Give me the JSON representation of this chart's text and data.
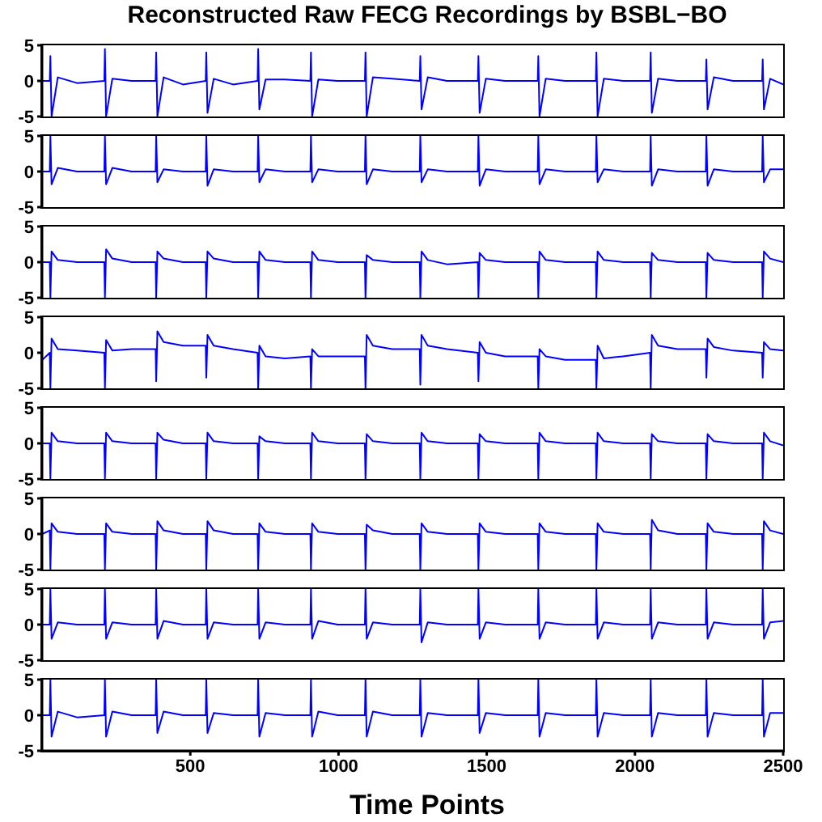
{
  "chart_data": [
    {
      "type": "line",
      "title": "Reconstructed Raw FECG Recordings by BSBL−BO",
      "x": [
        1,
        26,
        28,
        32,
        53,
        118,
        210,
        212,
        216,
        237,
        302,
        383,
        385,
        389,
        410,
        475,
        552,
        554,
        558,
        579,
        644,
        727,
        729,
        733,
        754,
        819,
        905,
        907,
        911,
        932,
        997,
        1089,
        1091,
        1095,
        1116,
        1181,
        1274,
        1276,
        1280,
        1301,
        1366,
        1470,
        1472,
        1476,
        1497,
        1562,
        1672,
        1674,
        1678,
        1699,
        1764,
        1868,
        1870,
        1874,
        1895,
        1960,
        2051,
        2053,
        2057,
        2078,
        2143,
        2239,
        2241,
        2245,
        2266,
        2331,
        2429,
        2431,
        2435,
        2456,
        2500
      ],
      "xlim": [
        0,
        2500
      ],
      "ylim": [
        -5,
        5
      ],
      "yticks": [
        -5,
        0,
        5
      ],
      "tick_labels": "y",
      "marker": "none",
      "line_style": "solid",
      "series": [
        {
          "color": "#0000ff",
          "values": [
            0,
            0,
            3.5,
            -5,
            0.5,
            -0.3,
            0,
            4.5,
            -5,
            0.3,
            0,
            0,
            4,
            -5,
            0.5,
            -0.5,
            0,
            4,
            -4.5,
            0.3,
            -0.5,
            0,
            4.5,
            -4,
            0.2,
            0.2,
            0,
            4,
            -5,
            0.2,
            0,
            0,
            4,
            -5,
            0.5,
            0.3,
            0,
            3.5,
            -4,
            0.5,
            0,
            0,
            3.5,
            -4.5,
            0.3,
            0,
            0,
            3.5,
            -5,
            0.3,
            0,
            0,
            4,
            -5,
            0.3,
            0,
            0,
            4,
            -4.5,
            0.3,
            0,
            0,
            3,
            -4,
            0.5,
            0,
            0,
            3,
            -4,
            0.3,
            -0.5
          ]
        }
      ]
    },
    {
      "type": "line",
      "x": [
        1,
        26,
        28,
        32,
        53,
        118,
        210,
        212,
        216,
        237,
        302,
        383,
        385,
        389,
        410,
        475,
        552,
        554,
        558,
        579,
        644,
        727,
        729,
        733,
        754,
        819,
        905,
        907,
        911,
        932,
        997,
        1089,
        1091,
        1095,
        1116,
        1181,
        1274,
        1276,
        1280,
        1301,
        1366,
        1470,
        1472,
        1476,
        1497,
        1562,
        1672,
        1674,
        1678,
        1699,
        1764,
        1868,
        1870,
        1874,
        1895,
        1960,
        2051,
        2053,
        2057,
        2078,
        2143,
        2239,
        2241,
        2245,
        2266,
        2331,
        2429,
        2431,
        2435,
        2456,
        2500
      ],
      "xlim": [
        0,
        2500
      ],
      "ylim": [
        -5,
        5
      ],
      "yticks": [
        -5,
        0,
        5
      ],
      "tick_labels": "y",
      "marker": "none",
      "line_style": "solid",
      "series": [
        {
          "color": "#0000ff",
          "values": [
            0,
            0,
            5,
            -1.8,
            0.5,
            0,
            0,
            5,
            -1.8,
            0.5,
            0,
            0,
            5,
            -1.5,
            0.3,
            0,
            0,
            5,
            -2,
            0.3,
            0,
            0,
            5,
            -1.5,
            0.3,
            0,
            0,
            5,
            -1.5,
            0.3,
            0,
            0,
            5,
            -1.8,
            0.3,
            0,
            0,
            5,
            -1.5,
            0.3,
            0,
            0,
            5,
            -2,
            0.3,
            0,
            0,
            5,
            -1.8,
            0.3,
            0,
            0,
            5,
            -1.5,
            0.3,
            0,
            0,
            5,
            -2,
            0.3,
            0,
            0,
            5,
            -2,
            0.3,
            0,
            0,
            5,
            -1.5,
            0.3,
            0.3
          ]
        }
      ]
    },
    {
      "type": "line",
      "x": [
        1,
        26,
        28,
        32,
        53,
        118,
        210,
        212,
        216,
        237,
        302,
        383,
        385,
        389,
        410,
        475,
        552,
        554,
        558,
        579,
        644,
        727,
        729,
        733,
        754,
        819,
        905,
        907,
        911,
        932,
        997,
        1089,
        1091,
        1095,
        1116,
        1181,
        1274,
        1276,
        1280,
        1301,
        1366,
        1470,
        1472,
        1476,
        1497,
        1562,
        1672,
        1674,
        1678,
        1699,
        1764,
        1868,
        1870,
        1874,
        1895,
        1960,
        2051,
        2053,
        2057,
        2078,
        2143,
        2239,
        2241,
        2245,
        2266,
        2331,
        2429,
        2431,
        2435,
        2456,
        2500
      ],
      "xlim": [
        0,
        2500
      ],
      "ylim": [
        -5,
        5
      ],
      "yticks": [
        -5,
        0,
        5
      ],
      "tick_labels": "y",
      "marker": "none",
      "line_style": "solid",
      "series": [
        {
          "color": "#0000ff",
          "values": [
            0,
            0,
            -5,
            1.5,
            0.3,
            0,
            0,
            -5,
            1.8,
            0.5,
            0,
            0,
            -5,
            1.5,
            0.5,
            0,
            0,
            -5,
            1.5,
            0.5,
            0,
            0,
            -5,
            1.5,
            0.3,
            0,
            0,
            -5,
            1.5,
            0.3,
            0,
            0,
            -5,
            1,
            0.3,
            0,
            0,
            -5,
            1.5,
            0.3,
            -0.3,
            0,
            -5,
            1.3,
            0.3,
            0,
            0,
            -5,
            1.5,
            0.3,
            0,
            0,
            -5,
            1.5,
            0.3,
            0,
            0,
            -5,
            1.3,
            0.3,
            0,
            0,
            -5,
            1.3,
            0.3,
            0,
            0,
            -5,
            1.5,
            0.5,
            0
          ]
        }
      ]
    },
    {
      "type": "line",
      "x": [
        1,
        26,
        28,
        32,
        53,
        118,
        210,
        212,
        216,
        237,
        302,
        383,
        385,
        389,
        410,
        475,
        552,
        554,
        558,
        579,
        644,
        727,
        729,
        733,
        754,
        819,
        905,
        907,
        911,
        932,
        997,
        1089,
        1091,
        1095,
        1116,
        1181,
        1274,
        1276,
        1280,
        1301,
        1366,
        1470,
        1472,
        1476,
        1497,
        1562,
        1672,
        1674,
        1678,
        1699,
        1764,
        1868,
        1870,
        1874,
        1895,
        1960,
        2051,
        2053,
        2057,
        2078,
        2143,
        2239,
        2241,
        2245,
        2266,
        2331,
        2429,
        2431,
        2435,
        2456,
        2500
      ],
      "xlim": [
        0,
        2500
      ],
      "ylim": [
        -5,
        5
      ],
      "yticks": [
        -5,
        0,
        5
      ],
      "tick_labels": "y",
      "marker": "none",
      "line_style": "solid",
      "series": [
        {
          "color": "#0000ff",
          "values": [
            -1,
            0,
            -5,
            2,
            0.5,
            0.3,
            0,
            -5,
            1.8,
            0.3,
            0.5,
            0.5,
            -4,
            3,
            1.5,
            1,
            1,
            -3.5,
            2.5,
            1,
            0.5,
            0,
            -5,
            1,
            -0.5,
            -0.8,
            -0.5,
            -5,
            0.5,
            -0.5,
            -0.5,
            -0.5,
            -5,
            2.5,
            1,
            0.5,
            0.5,
            -4.5,
            2.5,
            1,
            0.5,
            0,
            -4,
            1.5,
            0,
            -0.5,
            -0.5,
            -5,
            0.5,
            -0.5,
            -1,
            -1,
            -5,
            1,
            -0.8,
            -0.5,
            0,
            -5,
            2.5,
            1,
            0.5,
            0.5,
            -3.5,
            2,
            0.8,
            0.3,
            0,
            -3.5,
            1.5,
            0.5,
            0.3
          ]
        }
      ]
    },
    {
      "type": "line",
      "x": [
        1,
        26,
        28,
        32,
        53,
        118,
        210,
        212,
        216,
        237,
        302,
        383,
        385,
        389,
        410,
        475,
        552,
        554,
        558,
        579,
        644,
        727,
        729,
        733,
        754,
        819,
        905,
        907,
        911,
        932,
        997,
        1089,
        1091,
        1095,
        1116,
        1181,
        1274,
        1276,
        1280,
        1301,
        1366,
        1470,
        1472,
        1476,
        1497,
        1562,
        1672,
        1674,
        1678,
        1699,
        1764,
        1868,
        1870,
        1874,
        1895,
        1960,
        2051,
        2053,
        2057,
        2078,
        2143,
        2239,
        2241,
        2245,
        2266,
        2331,
        2429,
        2431,
        2435,
        2456,
        2500
      ],
      "xlim": [
        0,
        2500
      ],
      "ylim": [
        -5,
        5
      ],
      "yticks": [
        -5,
        0,
        5
      ],
      "tick_labels": "y",
      "marker": "none",
      "line_style": "solid",
      "series": [
        {
          "color": "#0000ff",
          "values": [
            0,
            0,
            -5,
            1.5,
            0.3,
            0,
            0,
            -5,
            1.5,
            0.3,
            0,
            0,
            -5,
            1.5,
            0.5,
            0,
            0,
            -5,
            1.5,
            0.3,
            0,
            0,
            -5,
            1,
            0.3,
            0,
            0,
            -5,
            1.5,
            0.3,
            0,
            0,
            -5,
            1.3,
            0.3,
            0,
            0,
            -5,
            1.5,
            0.3,
            0,
            0,
            -5,
            1.3,
            0.3,
            0,
            0,
            -5,
            1.5,
            0.3,
            0,
            0,
            -5,
            1.5,
            0.3,
            0,
            0,
            -5,
            1.3,
            0.3,
            0,
            0,
            -5,
            1.3,
            0.3,
            0,
            0,
            -5,
            1.5,
            0.3,
            -0.3
          ]
        }
      ]
    },
    {
      "type": "line",
      "x": [
        1,
        26,
        28,
        32,
        53,
        118,
        210,
        212,
        216,
        237,
        302,
        383,
        385,
        389,
        410,
        475,
        552,
        554,
        558,
        579,
        644,
        727,
        729,
        733,
        754,
        819,
        905,
        907,
        911,
        932,
        997,
        1089,
        1091,
        1095,
        1116,
        1181,
        1274,
        1276,
        1280,
        1301,
        1366,
        1470,
        1472,
        1476,
        1497,
        1562,
        1672,
        1674,
        1678,
        1699,
        1764,
        1868,
        1870,
        1874,
        1895,
        1960,
        2051,
        2053,
        2057,
        2078,
        2143,
        2239,
        2241,
        2245,
        2266,
        2331,
        2429,
        2431,
        2435,
        2456,
        2500
      ],
      "xlim": [
        0,
        2500
      ],
      "ylim": [
        -5,
        5
      ],
      "yticks": [
        -5,
        0,
        5
      ],
      "tick_labels": "y",
      "marker": "none",
      "line_style": "solid",
      "series": [
        {
          "color": "#0000ff",
          "values": [
            0,
            0.5,
            -5,
            1.5,
            0.3,
            0,
            0,
            -5,
            1.5,
            0.3,
            0,
            0,
            -5,
            1.8,
            0.5,
            0,
            0,
            -5,
            1.8,
            0.5,
            0,
            0,
            -5,
            1.5,
            0.3,
            0,
            0,
            -5,
            1.5,
            0.3,
            0,
            0,
            -5,
            1.3,
            0.5,
            0,
            0,
            -5,
            1.5,
            0.3,
            0,
            0,
            -5,
            1.5,
            0.3,
            0,
            0,
            -5,
            1.5,
            0.3,
            0,
            0,
            -5,
            1.5,
            0.3,
            0,
            0,
            -5,
            2,
            0.5,
            0,
            0,
            -5,
            1.5,
            0.3,
            0,
            0,
            -5,
            1.8,
            0.5,
            0
          ]
        }
      ]
    },
    {
      "type": "line",
      "x": [
        1,
        26,
        28,
        32,
        53,
        118,
        210,
        212,
        216,
        237,
        302,
        383,
        385,
        389,
        410,
        475,
        552,
        554,
        558,
        579,
        644,
        727,
        729,
        733,
        754,
        819,
        905,
        907,
        911,
        932,
        997,
        1089,
        1091,
        1095,
        1116,
        1181,
        1274,
        1276,
        1280,
        1301,
        1366,
        1470,
        1472,
        1476,
        1497,
        1562,
        1672,
        1674,
        1678,
        1699,
        1764,
        1868,
        1870,
        1874,
        1895,
        1960,
        2051,
        2053,
        2057,
        2078,
        2143,
        2239,
        2241,
        2245,
        2266,
        2331,
        2429,
        2431,
        2435,
        2456,
        2500
      ],
      "xlim": [
        0,
        2500
      ],
      "ylim": [
        -5,
        5
      ],
      "yticks": [
        -5,
        0,
        5
      ],
      "tick_labels": "y",
      "marker": "none",
      "line_style": "solid",
      "series": [
        {
          "color": "#0000ff",
          "values": [
            0,
            0,
            5,
            -2,
            0.3,
            0,
            0,
            5,
            -2,
            0.3,
            0,
            0,
            5,
            -2,
            0.5,
            0,
            0,
            5,
            -2,
            0.3,
            0,
            0,
            5,
            -2,
            0.3,
            0,
            0,
            5,
            -2,
            0.5,
            0,
            0,
            5,
            -2,
            0.3,
            0,
            0,
            5,
            -2.5,
            0.3,
            0,
            0,
            5,
            -2,
            0.3,
            0,
            0,
            5,
            -2,
            0.3,
            0,
            0,
            5,
            -2,
            0.3,
            0,
            0,
            5,
            -2,
            0.3,
            0,
            0,
            5,
            -2,
            0.3,
            0,
            0,
            5,
            -2,
            0.3,
            0.5
          ]
        }
      ]
    },
    {
      "type": "line",
      "xlabel": "Time Points",
      "x": [
        1,
        26,
        28,
        32,
        53,
        118,
        210,
        212,
        216,
        237,
        302,
        383,
        385,
        389,
        410,
        475,
        552,
        554,
        558,
        579,
        644,
        727,
        729,
        733,
        754,
        819,
        905,
        907,
        911,
        932,
        997,
        1089,
        1091,
        1095,
        1116,
        1181,
        1274,
        1276,
        1280,
        1301,
        1366,
        1470,
        1472,
        1476,
        1497,
        1562,
        1672,
        1674,
        1678,
        1699,
        1764,
        1868,
        1870,
        1874,
        1895,
        1960,
        2051,
        2053,
        2057,
        2078,
        2143,
        2239,
        2241,
        2245,
        2266,
        2331,
        2429,
        2431,
        2435,
        2456,
        2500
      ],
      "xlim": [
        0,
        2500
      ],
      "xticks": [
        500,
        1000,
        1500,
        2000,
        2500
      ],
      "ylim": [
        -5,
        5
      ],
      "yticks": [
        -5,
        0,
        5
      ],
      "marker": "none",
      "line_style": "solid",
      "series": [
        {
          "color": "#0000ff",
          "values": [
            0,
            0,
            5,
            -3,
            0.5,
            -0.3,
            0,
            5,
            -3,
            0.5,
            0,
            0,
            5,
            -2.5,
            0.5,
            0,
            0,
            5,
            -2.5,
            0.3,
            0,
            0,
            5,
            -3,
            0.3,
            0,
            0,
            5,
            -3,
            0.5,
            0,
            0,
            5,
            -3,
            0.5,
            0,
            0,
            5,
            -3,
            0.3,
            0,
            0,
            5,
            -2.5,
            0.3,
            0,
            0,
            5,
            -3,
            0.3,
            0,
            0,
            5,
            -3,
            0.3,
            0,
            0,
            5,
            -3,
            0.3,
            0,
            0,
            5,
            -3,
            0.3,
            0,
            0,
            5,
            -3,
            0.3,
            0.3
          ]
        }
      ]
    }
  ]
}
